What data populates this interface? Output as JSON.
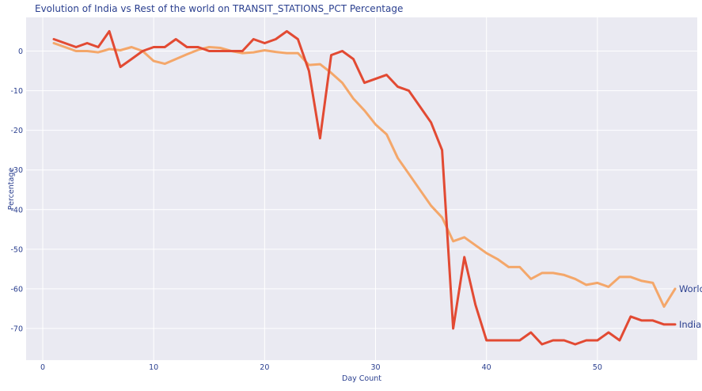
{
  "chart_data": {
    "type": "line",
    "title": "Evolution of India vs Rest of the world on TRANSIT_STATIONS_PCT Percentage",
    "xlabel": "Day Count",
    "ylabel": "Percentage",
    "xlim": [
      -1.5,
      59
    ],
    "ylim": [
      -78,
      8.5
    ],
    "xticks": [
      0,
      10,
      20,
      30,
      40,
      50
    ],
    "yticks": [
      0,
      -10,
      -20,
      -30,
      -40,
      -50,
      -60,
      -70
    ],
    "grid": true,
    "legend": "none",
    "background": "#eaeaf2",
    "series": [
      {
        "name": "World",
        "color": "#f4a76a",
        "x": [
          1,
          2,
          3,
          4,
          5,
          6,
          7,
          8,
          9,
          10,
          11,
          12,
          13,
          14,
          15,
          16,
          17,
          18,
          19,
          20,
          21,
          22,
          23,
          24,
          25,
          26,
          27,
          28,
          29,
          30,
          31,
          32,
          33,
          34,
          35,
          36,
          37,
          38,
          39,
          40,
          41,
          42,
          43,
          44,
          45,
          46,
          47,
          48,
          49,
          50,
          51,
          52,
          53,
          54,
          55,
          56,
          57
        ],
        "values": [
          2,
          1,
          0,
          0,
          -0.3,
          0.5,
          0.2,
          1,
          0,
          -2.5,
          -3.2,
          -2,
          -0.8,
          0.3,
          1,
          0.8,
          0,
          -0.5,
          -0.3,
          0.2,
          -0.2,
          -0.5,
          -0.5,
          -3.5,
          -3.3,
          -5.5,
          -8,
          -12,
          -15,
          -18.5,
          -21,
          -27,
          -31,
          -35,
          -39,
          -42,
          -48,
          -47,
          -49,
          -51,
          -52.5,
          -54.5,
          -54.5,
          -57.5,
          -56,
          -56,
          -56.5,
          -57.5,
          -59,
          -58.5,
          -59.5,
          -57,
          -57,
          -58,
          -58.5,
          -64.5,
          -60
        ]
      },
      {
        "name": "India",
        "color": "#e24a33",
        "x": [
          1,
          2,
          3,
          4,
          5,
          6,
          7,
          8,
          9,
          10,
          11,
          12,
          13,
          14,
          15,
          16,
          17,
          18,
          19,
          20,
          21,
          22,
          23,
          24,
          25,
          26,
          27,
          28,
          29,
          30,
          31,
          32,
          33,
          34,
          35,
          36,
          37,
          38,
          39,
          40,
          41,
          42,
          43,
          44,
          45,
          46,
          47,
          48,
          49,
          50,
          51,
          52,
          53,
          54,
          55,
          56,
          57
        ],
        "values": [
          3,
          2,
          1,
          2,
          1,
          5,
          -4,
          -2,
          0,
          1,
          1,
          3,
          1,
          1,
          0,
          0,
          0,
          0,
          3,
          2,
          3,
          5,
          3,
          -5,
          -22,
          -1,
          0,
          -2,
          -8,
          -7,
          -6,
          -9,
          -10,
          -14,
          -18,
          -25,
          -70,
          -52,
          -64,
          -73,
          -73,
          -73,
          -73,
          -71,
          -74,
          -73,
          -73,
          -74,
          -73,
          -73,
          -71,
          -73,
          -67,
          -68,
          -68,
          -69,
          -69
        ]
      }
    ]
  }
}
